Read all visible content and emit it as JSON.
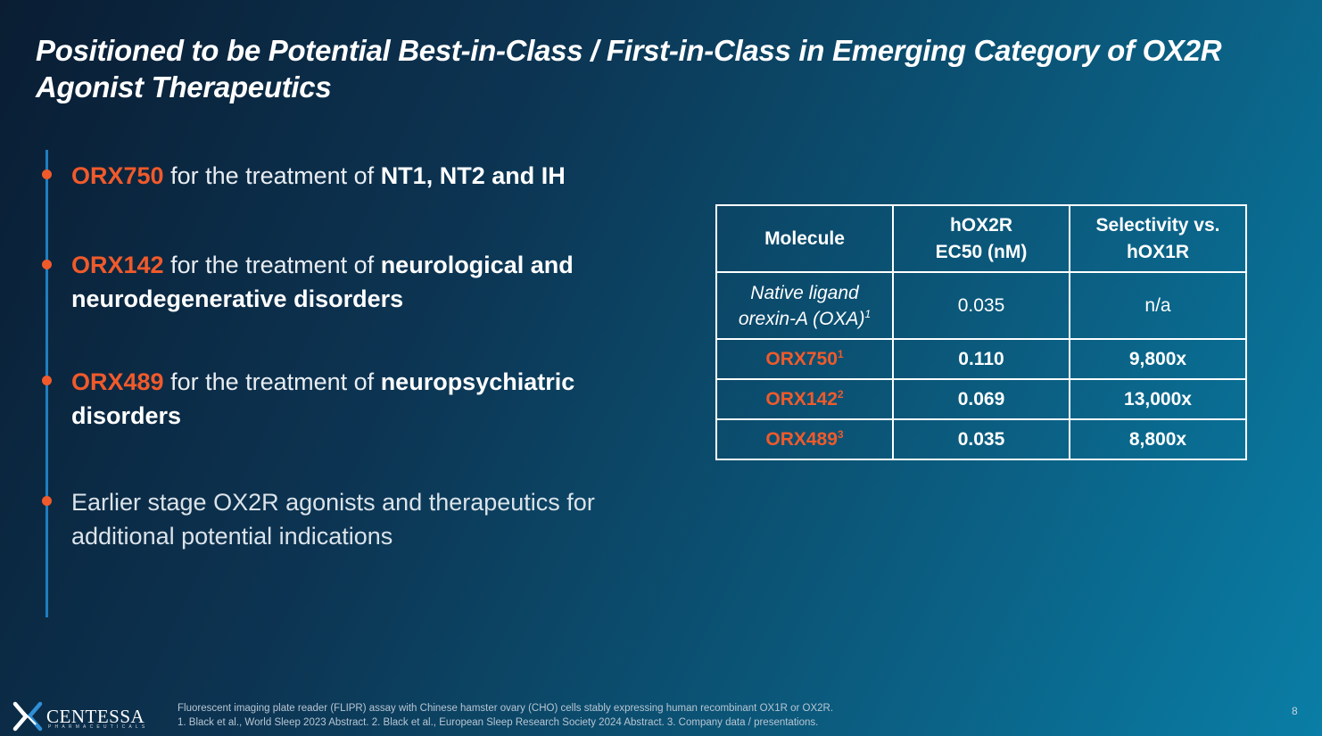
{
  "slide": {
    "title": "Positioned to be Potential Best-in-Class / First-in-Class in Emerging Category of OX2R Agonist Therapeutics",
    "page_number": "8",
    "accent_color": "#f05a2b",
    "timeline_color": "#1e7fbf"
  },
  "bullets": [
    {
      "name": "ORX750",
      "mid": " for the treatment of ",
      "bold": "NT1, NT2 and IH"
    },
    {
      "name": "ORX142",
      "mid": " for the treatment of ",
      "bold": "neurological and neurodegenerative disorders"
    },
    {
      "name": "ORX489",
      "mid": " for the treatment of ",
      "bold": "neuropsychiatric disorders"
    },
    {
      "text": "Earlier stage OX2R agonists and therapeutics for additional potential indications"
    }
  ],
  "table": {
    "headers": [
      "Molecule",
      "hOX2R EC50 (nM)",
      "Selectivity vs. hOX1R"
    ],
    "native": {
      "molecule": "Native ligand orexin-A (OXA)",
      "sup": "1",
      "ec50": "0.035",
      "selectivity": "n/a"
    },
    "rows": [
      {
        "molecule": "ORX750",
        "sup": "1",
        "ec50": "0.110",
        "selectivity": "9,800x"
      },
      {
        "molecule": "ORX142",
        "sup": "2",
        "ec50": "0.069",
        "selectivity": "13,000x"
      },
      {
        "molecule": "ORX489",
        "sup": "3",
        "ec50": "0.035",
        "selectivity": "8,800x"
      }
    ]
  },
  "logo": {
    "name": "CENTESSA",
    "sub": "PHARMACEUTICALS",
    "icon": "x-mark-icon"
  },
  "footnotes": {
    "line1": "Fluorescent imaging plate reader (FLIPR) assay with Chinese hamster ovary (CHO) cells stably expressing human recombinant OX1R or OX2R.",
    "line2": "1. Black et al., World Sleep 2023 Abstract. 2. Black et al., European Sleep Research Society 2024 Abstract. 3. Company data / presentations."
  }
}
